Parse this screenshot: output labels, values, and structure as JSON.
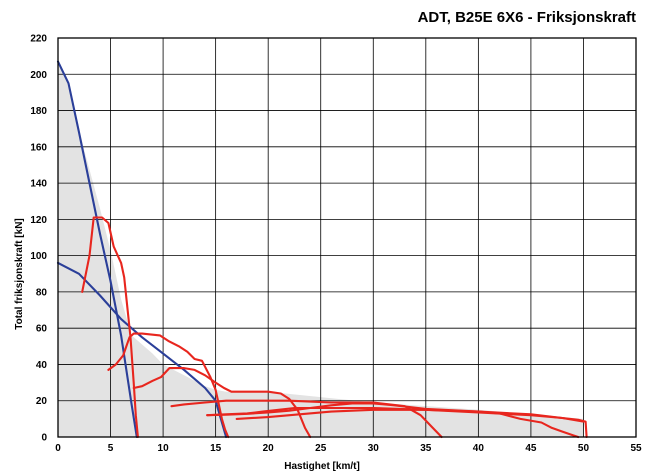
{
  "chart_data": {
    "type": "line",
    "title": "ADT, B25E 6X6 - Friksjonskraft",
    "xlabel": "Hastighet [km/t]",
    "ylabel": "Total friksjonskraft [kN]",
    "xlim": [
      0,
      55
    ],
    "ylim": [
      0,
      220
    ],
    "x_ticks": [
      "0",
      "5",
      "10",
      "15",
      "20",
      "25",
      "30",
      "35",
      "40",
      "45",
      "50",
      "55"
    ],
    "y_ticks": [
      "0",
      "20",
      "40",
      "60",
      "80",
      "100",
      "120",
      "140",
      "160",
      "180",
      "200",
      "220"
    ],
    "grid": true,
    "legend": "none",
    "colors": {
      "friction": "#2b3f99",
      "tractive": "#e8261e",
      "fill": "#e3e3e3",
      "grid": "#000000"
    },
    "fill_area": {
      "name": "friction-envelope",
      "x": [
        0,
        1.0,
        2.5,
        4.0,
        5.0,
        6.0,
        7.0,
        8.0,
        9.0,
        10.0,
        12.0,
        14.0,
        15.0,
        16.0,
        20.0,
        30.0,
        40.0,
        50.0,
        50.0
      ],
      "y": [
        206,
        195,
        158,
        126,
        103,
        76,
        56,
        51,
        46,
        40,
        34,
        28,
        26,
        25,
        25,
        19,
        15,
        10,
        0
      ]
    },
    "series": [
      {
        "kind": "friction",
        "x": [
          0,
          1.0,
          2.0,
          3.0,
          4.0,
          5.0,
          6.0,
          7.0,
          7.5
        ],
        "y": [
          207,
          195,
          168,
          140,
          112,
          86,
          56,
          18,
          0
        ]
      },
      {
        "kind": "friction",
        "x": [
          0,
          2.0,
          4.0,
          6.0,
          8.0,
          10.0,
          12.0,
          14.0,
          15.0,
          15.5,
          16.0
        ],
        "y": [
          96,
          90,
          78,
          65,
          55,
          46,
          37,
          27,
          20,
          10,
          0
        ]
      },
      {
        "kind": "tractive",
        "x": [
          2.3,
          3.0,
          3.4,
          4.2,
          4.8,
          5.3,
          6.0,
          6.3,
          6.9,
          7.2,
          7.4,
          7.6
        ],
        "y": [
          80,
          100,
          121,
          121,
          118,
          105,
          96,
          88,
          55,
          30,
          12,
          0
        ]
      },
      {
        "kind": "tractive",
        "x": [
          4.8,
          5.5,
          6.2,
          6.8,
          7.0,
          7.2,
          8.0,
          9.7,
          10.5,
          11.5,
          12.3,
          13.0,
          13.7,
          14.5,
          15.0,
          15.3,
          15.6,
          15.9,
          16.2
        ],
        "y": [
          37,
          40,
          45,
          55,
          56,
          57,
          57,
          56,
          53,
          50,
          47,
          43,
          42,
          33,
          26,
          18,
          10,
          4,
          0
        ]
      },
      {
        "kind": "tractive",
        "x": [
          7.2,
          8.0,
          9.0,
          9.8,
          10.6,
          11.2,
          12.0,
          13.0,
          14.0,
          15.0,
          15.8,
          16.5,
          18.0,
          20.0,
          21.2,
          22.0,
          22.8,
          23.5,
          24.0
        ],
        "y": [
          27,
          28,
          31,
          33,
          38,
          38,
          38,
          37,
          34,
          30,
          27,
          25,
          25,
          25,
          24,
          21,
          15,
          5,
          0
        ]
      },
      {
        "kind": "tractive",
        "x": [
          10.8,
          12.0,
          14.0,
          16.0,
          18.0,
          20.0,
          22.0,
          24.0,
          26.0,
          28.0,
          30.0,
          33.0,
          34.5,
          35.5,
          36.5
        ],
        "y": [
          17,
          18,
          19,
          20,
          20,
          20,
          20,
          19.5,
          19,
          19,
          19,
          17,
          12,
          6,
          0
        ]
      },
      {
        "kind": "tractive",
        "x": [
          14.2,
          16.0,
          18.0,
          19.5,
          21.0,
          22.5,
          24.0,
          25.0,
          26.0,
          28.0,
          30.0,
          35.0,
          40.0,
          42.0,
          44.0,
          46.0,
          47.0,
          48.0,
          49.0,
          49.5
        ],
        "y": [
          12,
          12.5,
          13,
          14,
          15,
          16,
          16,
          16,
          16,
          16,
          16,
          15,
          14,
          13,
          10,
          8,
          5,
          3,
          1,
          0
        ]
      },
      {
        "kind": "tractive",
        "x": [
          14.2,
          16.0,
          18.0,
          20.0,
          22.0,
          24.0,
          26.0,
          28.0,
          30.0,
          32.0,
          35.0,
          40.0,
          45.0,
          48.0,
          49.5,
          50.2,
          50.3
        ],
        "y": [
          12,
          12.3,
          12.8,
          13.5,
          14.5,
          16,
          17.5,
          18.5,
          18.5,
          17.5,
          15.5,
          14,
          12.5,
          10.5,
          9.5,
          8.5,
          0
        ]
      },
      {
        "kind": "tractive",
        "x": [
          17.0,
          20.0,
          23.0,
          26.0,
          30.0,
          35.0,
          40.0,
          45.0,
          48.0,
          50.0
        ],
        "y": [
          10,
          11,
          12.5,
          14,
          15,
          15,
          13.5,
          12,
          10.5,
          8.5
        ]
      }
    ]
  }
}
